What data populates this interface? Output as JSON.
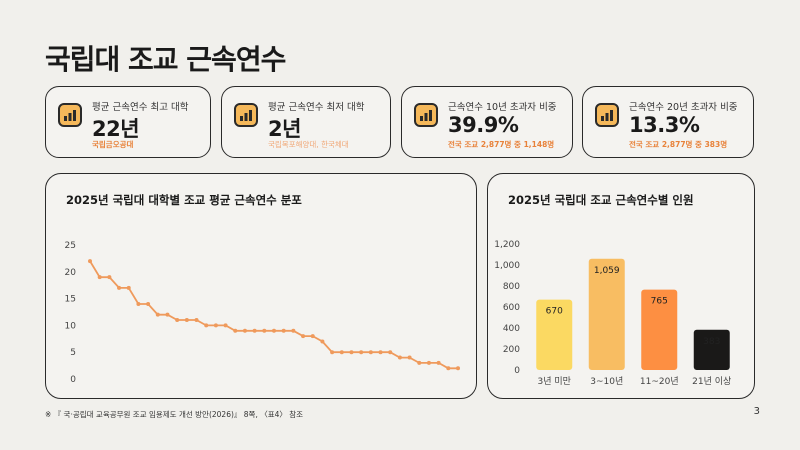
{
  "page": {
    "title": "국립대 조교 근속연수",
    "page_number": "3"
  },
  "footnote": "※ 『 국·공립대 교육공무원 조교 임용제도 개선 방안(2026)』 8쪽, 〈표4〉 참조",
  "kpis": [
    {
      "label": "평균 근속연수 최고 대학",
      "value": "22년",
      "note": "국립금오공대",
      "note_style": "accent",
      "icon": "bar-chart-icon"
    },
    {
      "label": "평균 근속연수 최저 대학",
      "value": "2년",
      "note": "국립목포해양대, 한국체대",
      "note_style": "muted",
      "icon": "bar-chart-icon"
    },
    {
      "label": "근속연수 10년 초과자 비중",
      "value": "39.9%",
      "note": "전국 조교 2,877명 중 1,148명",
      "note_style": "accent",
      "icon": "bar-chart-icon"
    },
    {
      "label": "근속연수 20년 초과자 비중",
      "value": "13.3%",
      "note": "전국 조교 2,877명 중 383명",
      "note_style": "accent",
      "icon": "bar-chart-icon"
    }
  ],
  "colors": {
    "line": "#ef9a5c",
    "bars": [
      "#fbd962",
      "#f8bd62",
      "#fd8f42",
      "#1a1918"
    ],
    "bar_label_light": "#ffffff"
  },
  "chart_data": [
    {
      "type": "line",
      "title": "2025년 국립대 대학별 조교 평균 근속연수 분포",
      "xlabel": "",
      "ylabel": "",
      "ylim": [
        0,
        25
      ],
      "yticks": [
        "0",
        "5",
        "10",
        "15",
        "20",
        "25"
      ],
      "grid": false,
      "series": [
        {
          "values": [
            22,
            19,
            19,
            17,
            17,
            14,
            14,
            12,
            12,
            11,
            11,
            11,
            10,
            10,
            10,
            9,
            9,
            9,
            9,
            9,
            9,
            9,
            8,
            8,
            7,
            5,
            5,
            5,
            5,
            5,
            5,
            5,
            4,
            4,
            3,
            3,
            3,
            2,
            2
          ]
        }
      ]
    },
    {
      "type": "bar",
      "title": "2025년 국립대 조교 근속연수별 인원",
      "xlabel": "",
      "ylabel": "",
      "categories": [
        "3년 미만",
        "3~10년",
        "11~20년",
        "21년 이상"
      ],
      "values": [
        670,
        1059,
        765,
        383
      ],
      "value_labels": [
        "670",
        "1,059",
        "765",
        "383"
      ],
      "ylim": [
        0,
        1200
      ],
      "yticks": [
        "0",
        "200",
        "400",
        "600",
        "800",
        "1,000",
        "1,200"
      ],
      "grid": false
    }
  ]
}
